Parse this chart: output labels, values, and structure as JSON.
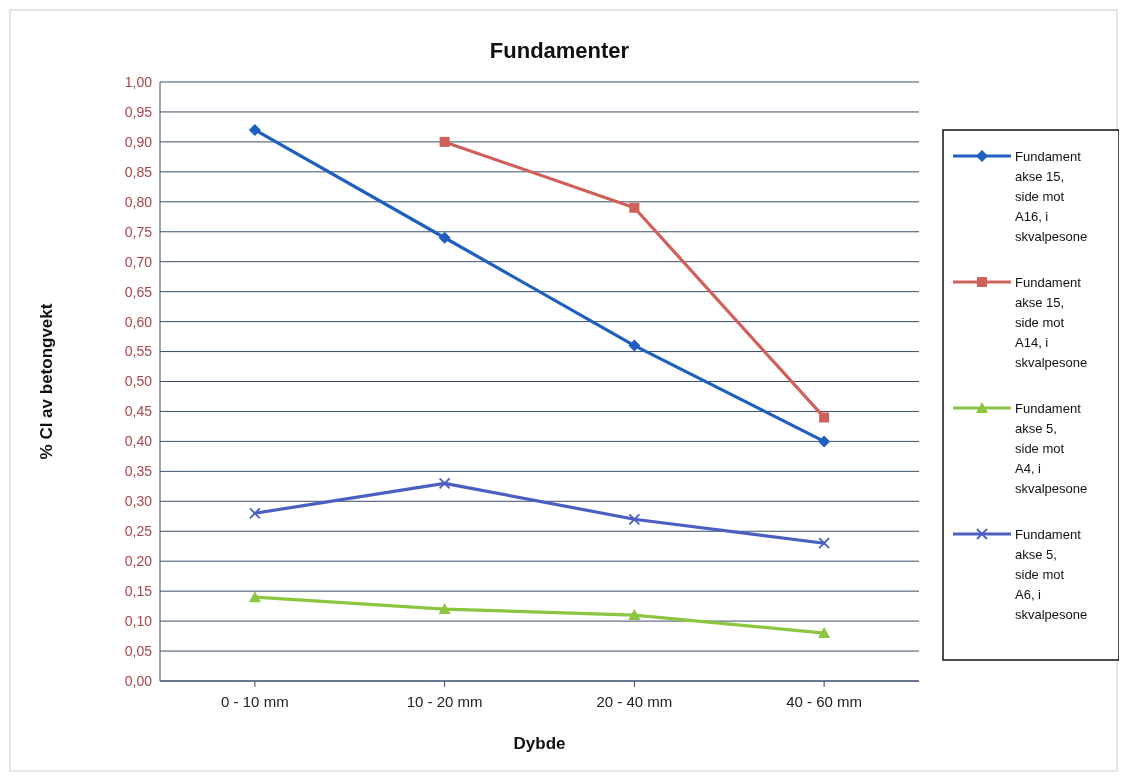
{
  "chart_data": {
    "type": "line",
    "title": "Fundamenter",
    "xlabel": "Dybde",
    "ylabel": "% Cl av betongvekt",
    "categories": [
      "0 - 10 mm",
      "10 - 20 mm",
      "20 - 40 mm",
      "40 - 60 mm"
    ],
    "series": [
      {
        "name": "Fundament akse 15, side mot A16, i skvalpesone",
        "color": "#1f5fbf",
        "marker": "diamond",
        "values": [
          0.92,
          0.74,
          0.56,
          0.4
        ]
      },
      {
        "name": "Fundament akse 15, side mot A14, i skvalpesone",
        "color": "#d0605a",
        "marker": "square",
        "values": [
          null,
          0.9,
          0.79,
          0.44
        ]
      },
      {
        "name": "Fundament akse 5, side mot A4, i skvalpesone",
        "color": "#8cc63f",
        "marker": "triangle",
        "values": [
          0.14,
          0.12,
          0.11,
          0.08
        ]
      },
      {
        "name": "Fundament akse 5, side mot A6, i skvalpesone",
        "color": "#4a5fc1",
        "marker": "cross",
        "values": [
          0.28,
          0.33,
          0.27,
          0.23
        ]
      }
    ],
    "ylim": [
      0,
      1
    ],
    "yticks": [
      {
        "value": 0,
        "label": "0,00"
      },
      {
        "value": 0.05,
        "label": "0,05"
      },
      {
        "value": 0.1,
        "label": "0,10"
      },
      {
        "value": 0.15,
        "label": "0,15"
      },
      {
        "value": 0.2,
        "label": "0,20"
      },
      {
        "value": 0.25,
        "label": "0,25"
      },
      {
        "value": 0.3,
        "label": "0,30"
      },
      {
        "value": 0.35,
        "label": "0,35"
      },
      {
        "value": 0.4,
        "label": "0,40"
      },
      {
        "value": 0.45,
        "label": "0,45"
      },
      {
        "value": 0.5,
        "label": "0,50"
      },
      {
        "value": 0.55,
        "label": "0,55"
      },
      {
        "value": 0.6,
        "label": "0,60"
      },
      {
        "value": 0.65,
        "label": "0,65"
      },
      {
        "value": 0.7,
        "label": "0,70"
      },
      {
        "value": 0.75,
        "label": "0,75"
      },
      {
        "value": 0.8,
        "label": "0,80"
      },
      {
        "value": 0.85,
        "label": "0,85"
      },
      {
        "value": 0.9,
        "label": "0,90"
      },
      {
        "value": 0.95,
        "label": "0,95"
      },
      {
        "value": 1,
        "label": "1,00"
      }
    ],
    "grid": "y",
    "legend": "right",
    "line_style": "solid"
  }
}
